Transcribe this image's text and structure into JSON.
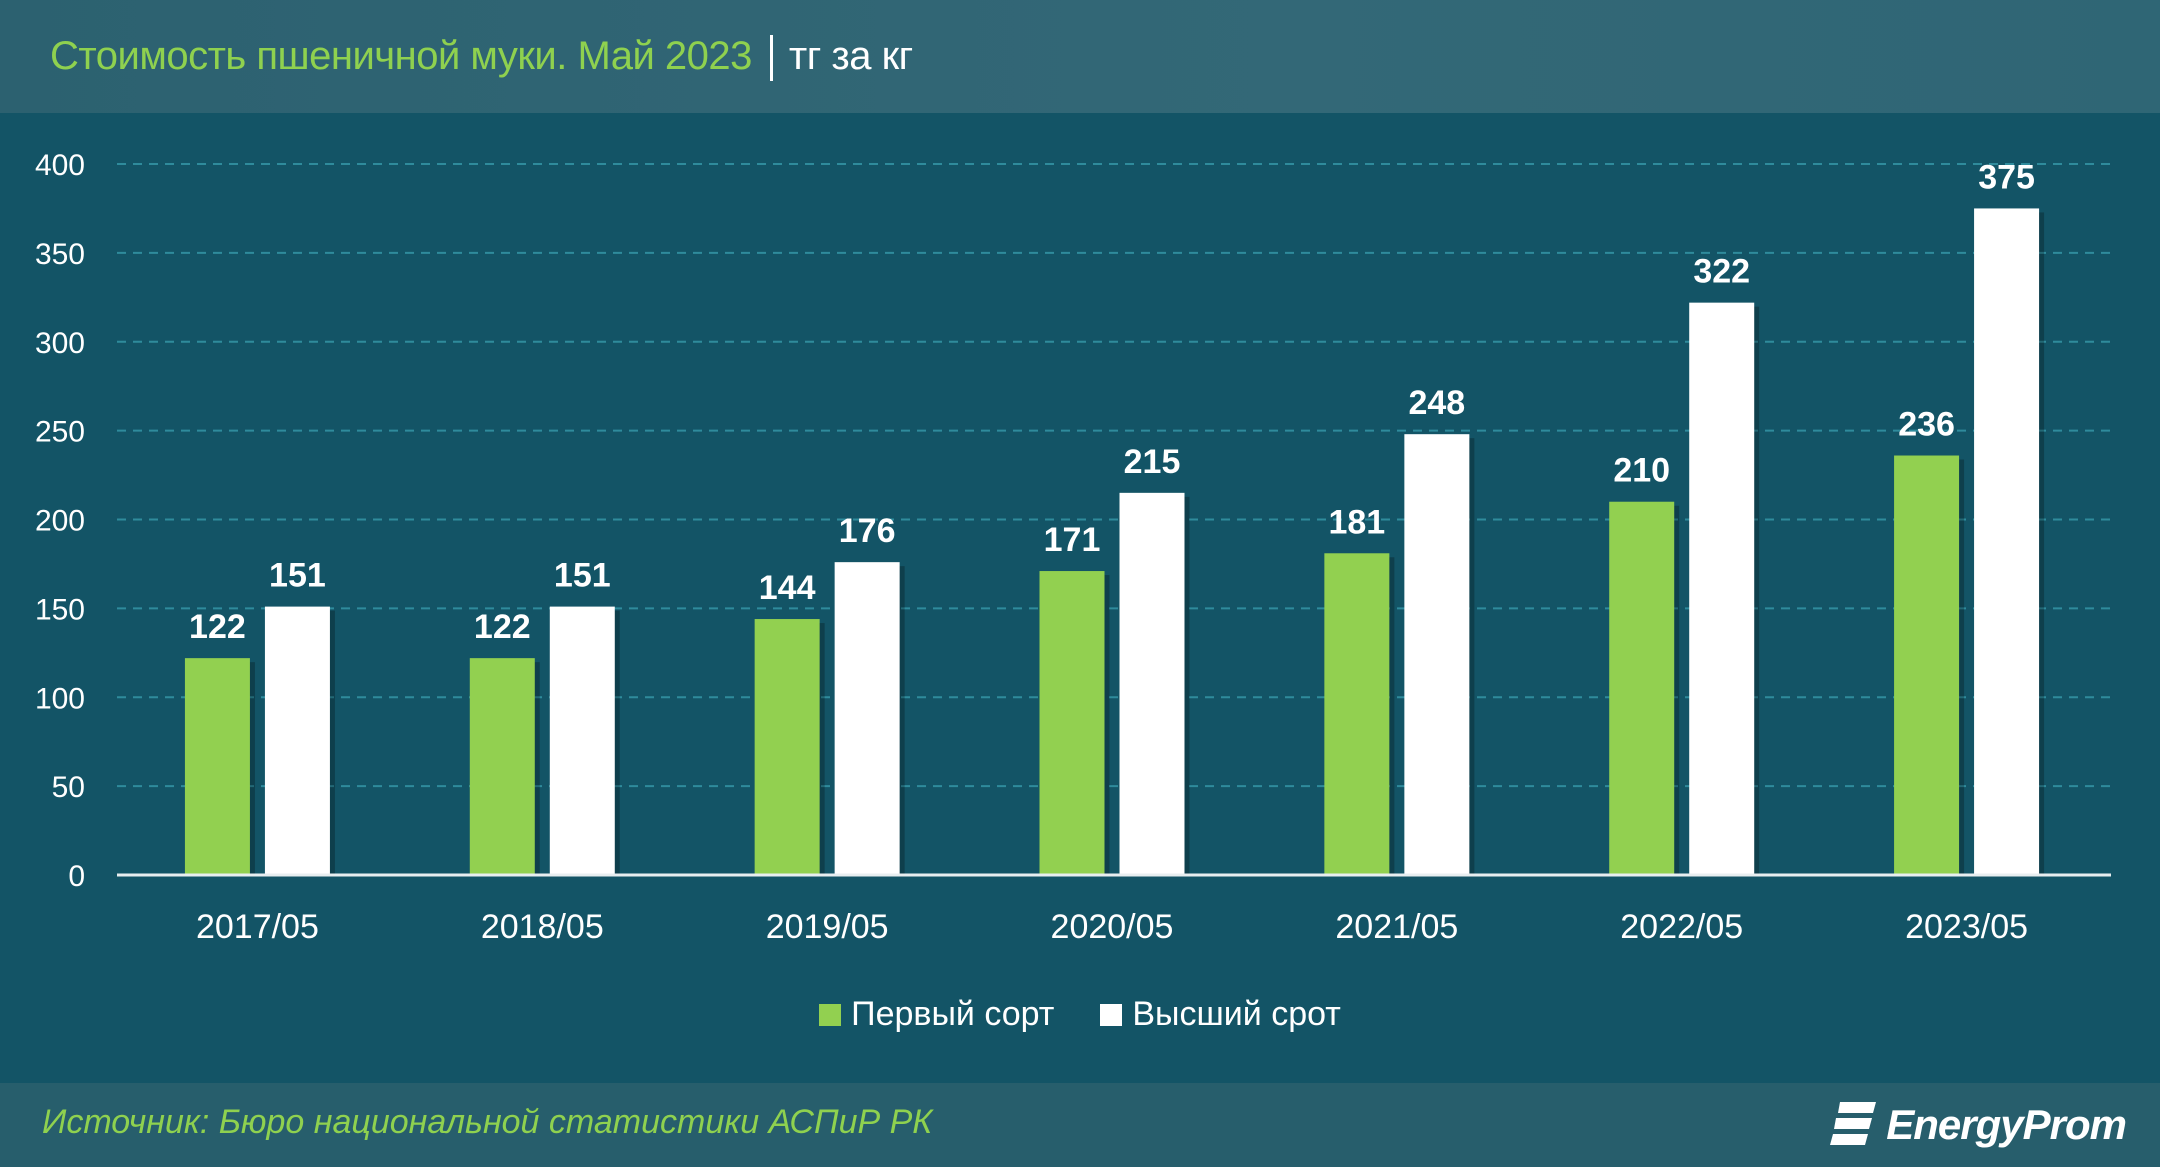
{
  "header": {
    "title": "Стоимость пшеничной муки. Май 2023",
    "unit": "тг за кг"
  },
  "footer": {
    "source": "Источник: Бюро национальной статистики АСПиР РК",
    "logo_text": "EnergyProm"
  },
  "colors": {
    "first_grade": "#92d050",
    "highest_grade": "#ffffff",
    "background": "#135466",
    "grid": "#2f8b9c"
  },
  "chart_data": {
    "type": "bar",
    "title": "Стоимость пшеничной муки. Май 2023",
    "ylabel": "",
    "xlabel": "",
    "categories": [
      "2017/05",
      "2018/05",
      "2019/05",
      "2020/05",
      "2021/05",
      "2022/05",
      "2023/05"
    ],
    "series": [
      {
        "name": "Первый сорт",
        "values": [
          122,
          122,
          144,
          171,
          181,
          210,
          236
        ]
      },
      {
        "name": "Высший срот",
        "values": [
          151,
          151,
          176,
          215,
          248,
          322,
          375
        ]
      }
    ],
    "ylim": [
      0,
      400
    ],
    "yticks": [
      0,
      50,
      100,
      150,
      200,
      250,
      300,
      350,
      400
    ],
    "grid": true,
    "legend": "bottom",
    "data_labels": true
  }
}
